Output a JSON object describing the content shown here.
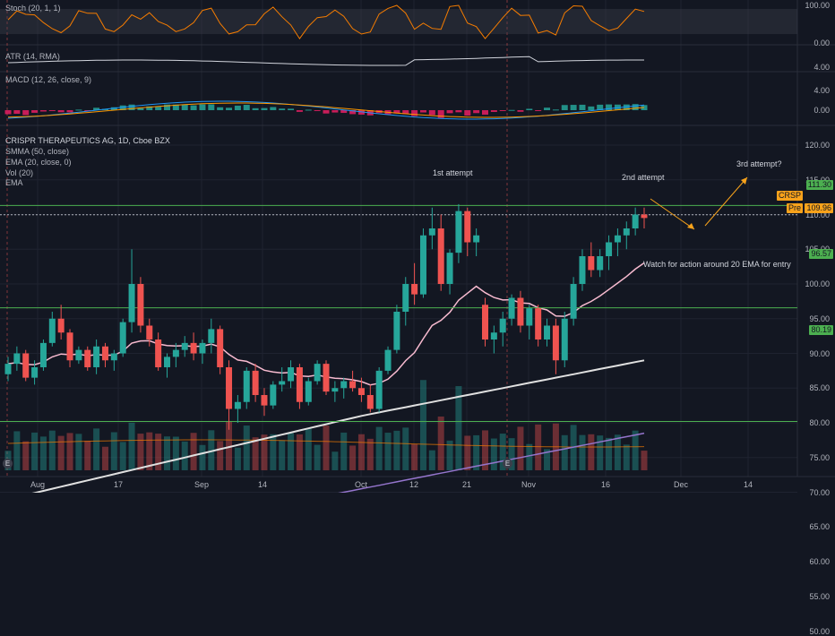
{
  "panes": {
    "stoch": {
      "label": "Stoch (20, 1, 1)",
      "ticks": [
        "100.00",
        "0.00"
      ]
    },
    "atr": {
      "label": "ATR (14, RMA)",
      "ticks": [
        "4.00"
      ]
    },
    "macd": {
      "label": "MACD (12, 26, close, 9)",
      "ticks": [
        "4.00",
        "0.00"
      ]
    },
    "main": {
      "title": "CRISPR THERAPEUTICS AG, 1D, Cboe BZX",
      "indicators": [
        "SMMA (50, close)",
        "EMA (20, close, 0)",
        "Vol (20)",
        "EMA"
      ],
      "ticks": [
        "120.00",
        "115.00",
        "110.00",
        "105.00",
        "100.00",
        "95.00",
        "90.00",
        "85.00",
        "80.00",
        "75.00",
        "70.00",
        "65.00",
        "60.00",
        "55.00",
        "50.00"
      ]
    }
  },
  "price_tags": {
    "resistance": "111.30",
    "ticker": "CRSP",
    "pre_label": "Pre",
    "pre_value": "109.96",
    "support_1": "96.57",
    "support_2": "80.19"
  },
  "annotations": {
    "first": "1st attempt",
    "second": "2nd attempt",
    "third": "3rd attempt?",
    "watch": "Watch for action around 20 EMA for entry"
  },
  "x_axis": [
    "Aug",
    "17",
    "Sep",
    "14",
    "Oct",
    "12",
    "21",
    "Nov",
    "16",
    "Dec",
    "14"
  ],
  "colors": {
    "up": "#26a69a",
    "down": "#ef5350",
    "hline": "#4caf50",
    "stoch": "#f57c00",
    "atr": "#d1d4dc",
    "ema20": "#f8bbd0",
    "smma50": "#e0e0e0",
    "ema200": "#9575cd",
    "arrow": "#f7a21b",
    "macd": "#2196f3",
    "signal": "#ff9800"
  },
  "chart_data": {
    "type": "candlestick",
    "title": "CRISPR THERAPEUTICS AG, 1D, Cboe BZX",
    "ylim": [
      48,
      122
    ],
    "candles": [
      [
        87,
        89.5,
        86,
        88.5
      ],
      [
        88.5,
        91,
        87.5,
        90
      ],
      [
        90,
        90.5,
        86,
        86.5
      ],
      [
        86.5,
        89,
        85.5,
        88
      ],
      [
        88,
        92,
        87.5,
        91.5
      ],
      [
        91.5,
        96,
        91,
        95
      ],
      [
        95,
        97,
        92,
        93
      ],
      [
        93,
        93.5,
        88,
        89
      ],
      [
        89,
        91,
        88.5,
        90.5
      ],
      [
        90.5,
        91,
        87.5,
        88
      ],
      [
        88,
        92,
        87,
        91
      ],
      [
        91,
        91.5,
        88,
        89
      ],
      [
        89,
        90.5,
        87.5,
        90
      ],
      [
        90,
        95,
        89.5,
        94.5
      ],
      [
        94.5,
        105,
        93,
        100
      ],
      [
        100,
        101,
        93,
        94
      ],
      [
        94,
        95,
        91,
        92
      ],
      [
        92,
        93,
        87.5,
        88
      ],
      [
        88,
        90,
        86.5,
        89.5
      ],
      [
        89.5,
        91.5,
        88,
        90.5
      ],
      [
        90.5,
        92.5,
        89.5,
        91.5
      ],
      [
        91.5,
        93,
        89,
        90
      ],
      [
        90,
        92,
        88.5,
        91.5
      ],
      [
        91.5,
        95,
        90,
        93.5
      ],
      [
        93.5,
        94,
        87,
        88
      ],
      [
        88,
        89,
        79,
        82
      ],
      [
        82,
        84,
        80,
        83
      ],
      [
        83,
        88,
        82,
        87.5
      ],
      [
        87.5,
        88.5,
        83,
        84
      ],
      [
        84,
        85,
        81,
        82.5
      ],
      [
        82.5,
        86,
        82,
        85.5
      ],
      [
        85.5,
        88,
        84.5,
        86
      ],
      [
        86,
        89,
        85,
        88
      ],
      [
        88,
        88.5,
        82,
        83
      ],
      [
        83,
        86.5,
        82.5,
        86
      ],
      [
        86,
        89,
        85.5,
        88.5
      ],
      [
        88.5,
        89,
        84,
        84.5
      ],
      [
        84.5,
        86,
        83,
        85
      ],
      [
        85,
        86.5,
        83.5,
        86
      ],
      [
        86,
        87.5,
        84.5,
        85
      ],
      [
        85,
        86.5,
        83,
        84
      ],
      [
        84,
        85.5,
        81.5,
        82
      ],
      [
        82,
        88,
        81.5,
        87.5
      ],
      [
        87.5,
        91,
        87,
        90.5
      ],
      [
        90.5,
        97,
        90,
        96
      ],
      [
        96,
        101,
        94,
        100
      ],
      [
        100,
        103,
        97,
        98.5
      ],
      [
        98.5,
        108,
        98,
        107
      ],
      [
        107,
        111,
        105,
        108
      ],
      [
        108,
        110,
        99,
        100
      ],
      [
        100,
        105,
        98.5,
        104.5
      ],
      [
        104.5,
        111.5,
        103,
        110.5
      ],
      [
        110.5,
        111,
        104,
        106
      ],
      [
        106,
        108,
        104,
        107
      ],
      [
        97,
        98,
        91,
        92
      ],
      [
        92,
        94,
        90,
        93
      ],
      [
        93,
        96,
        91,
        95
      ],
      [
        95,
        98.5,
        94,
        98
      ],
      [
        98,
        99,
        93,
        94
      ],
      [
        94,
        97,
        92,
        96.5
      ],
      [
        96.5,
        97,
        91,
        92
      ],
      [
        92,
        95,
        91,
        94
      ],
      [
        94,
        95,
        87,
        89
      ],
      [
        89,
        96,
        88,
        95
      ],
      [
        95,
        101,
        94,
        100
      ],
      [
        100,
        105,
        99,
        104
      ],
      [
        104,
        106,
        101,
        102
      ],
      [
        102,
        105,
        101,
        104
      ],
      [
        104,
        107,
        102,
        106
      ],
      [
        106,
        108,
        104,
        107
      ],
      [
        107,
        109,
        105,
        108
      ],
      [
        108,
        111,
        107,
        110
      ],
      [
        110,
        111,
        108,
        109.5
      ]
    ],
    "horizontal_levels": [
      111.3,
      96.57,
      80.19
    ],
    "pre_market": 109.96
  }
}
